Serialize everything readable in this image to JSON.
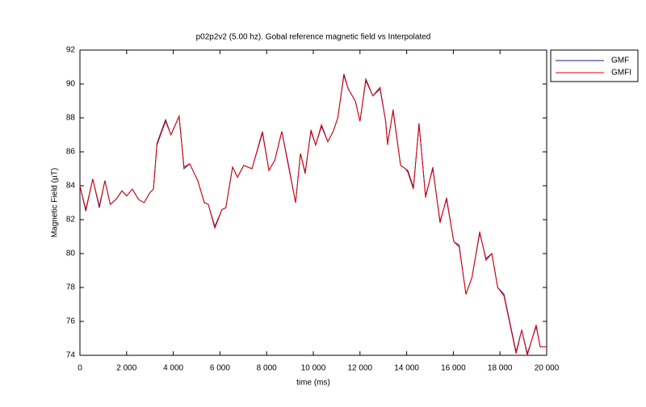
{
  "chart_data": {
    "type": "line",
    "title": "p02p2v2 (5.00 hz). Gobal reference magnetic field vs Interpolated",
    "x_label": "time (ms)",
    "y_label": "Magnetic Field (µT)",
    "x": [
      0,
      250,
      550,
      830,
      1070,
      1300,
      1550,
      1800,
      2000,
      2250,
      2500,
      2750,
      3000,
      3150,
      3300,
      3670,
      3900,
      4250,
      4460,
      4700,
      5050,
      5330,
      5500,
      5780,
      6090,
      6250,
      6540,
      6750,
      7020,
      7370,
      7820,
      8100,
      8350,
      8650,
      8900,
      9240,
      9450,
      9650,
      9900,
      10100,
      10350,
      10620,
      10850,
      11050,
      11310,
      11500,
      11800,
      12000,
      12250,
      12550,
      12860,
      13100,
      13180,
      13420,
      13740,
      13950,
      14050,
      14290,
      14530,
      14810,
      15120,
      15430,
      15710,
      16020,
      16250,
      16540,
      16800,
      17130,
      17400,
      17650,
      17900,
      18170,
      18690,
      18930,
      19170,
      19550,
      19720,
      20000
    ],
    "series": [
      {
        "name": "GMF",
        "color": "#1a1a8c",
        "values": [
          84.0,
          82.5,
          84.4,
          82.7,
          84.3,
          82.9,
          83.2,
          83.7,
          83.4,
          83.8,
          83.2,
          83.0,
          83.6,
          83.8,
          86.5,
          87.9,
          87.0,
          88.1,
          85.0,
          85.3,
          84.3,
          83.0,
          82.9,
          81.6,
          82.6,
          82.7,
          85.1,
          84.5,
          85.2,
          85.0,
          87.1,
          84.9,
          85.5,
          87.2,
          85.5,
          83.0,
          85.9,
          84.8,
          87.2,
          86.4,
          87.5,
          86.6,
          87.2,
          88.0,
          90.5,
          89.7,
          89.0,
          87.8,
          90.2,
          89.3,
          89.7,
          87.8,
          86.5,
          88.4,
          85.2,
          85.0,
          84.9,
          83.9,
          87.6,
          83.4,
          85.0,
          81.9,
          83.2,
          80.7,
          80.5,
          77.6,
          78.6,
          81.2,
          79.7,
          80.0,
          78.0,
          77.6,
          74.2,
          75.5,
          74.1,
          75.7,
          74.5,
          74.5
        ]
      },
      {
        "name": "GMFI",
        "color": "#e00000",
        "values": [
          84.0,
          82.6,
          84.4,
          82.8,
          84.3,
          82.9,
          83.2,
          83.7,
          83.4,
          83.8,
          83.2,
          83.0,
          83.6,
          83.8,
          86.4,
          87.8,
          87.0,
          88.1,
          85.1,
          85.3,
          84.3,
          83.0,
          82.9,
          81.5,
          82.6,
          82.7,
          85.1,
          84.5,
          85.2,
          85.0,
          87.2,
          84.9,
          85.5,
          87.2,
          85.4,
          83.0,
          85.9,
          84.7,
          87.3,
          86.4,
          87.6,
          86.6,
          87.2,
          88.0,
          90.6,
          89.7,
          89.0,
          87.8,
          90.3,
          89.3,
          89.8,
          87.8,
          86.4,
          88.5,
          85.2,
          85.0,
          84.8,
          83.8,
          87.7,
          83.3,
          85.1,
          81.8,
          83.3,
          80.7,
          80.4,
          77.6,
          78.6,
          81.3,
          79.6,
          80.0,
          78.0,
          77.5,
          74.1,
          75.5,
          74.0,
          75.8,
          74.5,
          74.5
        ]
      }
    ],
    "xlim": [
      0,
      20000
    ],
    "xticks": [
      {
        "value": 0,
        "label": "0"
      },
      {
        "value": 2000,
        "label": "2 000"
      },
      {
        "value": 4000,
        "label": "4 000"
      },
      {
        "value": 6000,
        "label": "6 000"
      },
      {
        "value": 8000,
        "label": "8 000"
      },
      {
        "value": 10000,
        "label": "10 000"
      },
      {
        "value": 12000,
        "label": "12 000"
      },
      {
        "value": 14000,
        "label": "14 000"
      },
      {
        "value": 16000,
        "label": "16 000"
      },
      {
        "value": 18000,
        "label": "18 000"
      },
      {
        "value": 20000,
        "label": "20 000"
      }
    ],
    "ylim": [
      74,
      92
    ],
    "yticks": [
      74,
      76,
      78,
      80,
      82,
      84,
      86,
      88,
      90,
      92
    ]
  }
}
